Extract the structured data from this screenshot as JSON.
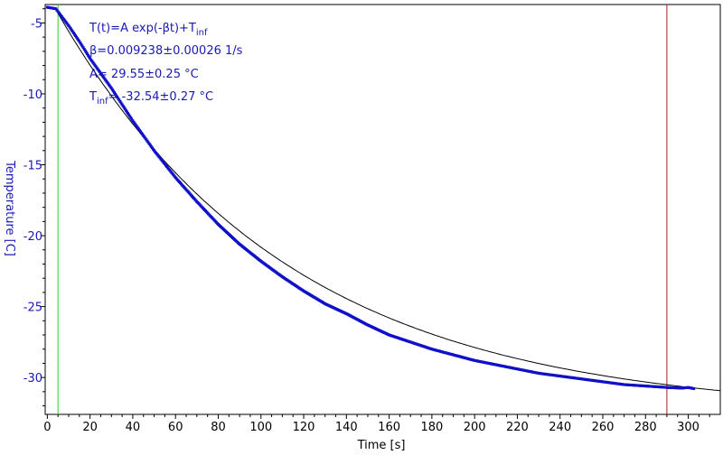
{
  "chart_data": {
    "type": "scatter",
    "xlabel": "Time [s]",
    "ylabel": "Temperature [C]",
    "xlim": [
      -1,
      315
    ],
    "ylim": [
      -32.6,
      -3.7
    ],
    "xticks": [
      0,
      20,
      40,
      60,
      80,
      100,
      120,
      140,
      160,
      180,
      200,
      220,
      240,
      260,
      280,
      300
    ],
    "yticks": [
      -5,
      -10,
      -15,
      -20,
      -25,
      -30
    ],
    "grid": false,
    "annotations": {
      "line1_main": "T(t)=A exp(-βt)+T",
      "line1_sub": "inf",
      "line2": "β=0.009238±0.00026 1/s",
      "line3": "A= 29.55±0.25 °C",
      "line4_main": "T",
      "line4_sub": "inf",
      "line4_rest": "= -32.54±0.27 °C"
    },
    "fit": {
      "A": 29.55,
      "beta": 0.009238,
      "T_inf": -32.54,
      "x_start": 5,
      "x_end": 315
    },
    "measured": {
      "x": [
        0,
        2,
        4,
        6,
        10,
        15,
        20,
        30,
        40,
        50,
        60,
        70,
        80,
        90,
        100,
        110,
        120,
        130,
        140,
        150,
        160,
        170,
        180,
        190,
        200,
        210,
        220,
        230,
        240,
        250,
        260,
        270,
        280,
        290,
        297,
        300,
        303
      ],
      "y": [
        -3.9,
        -3.95,
        -4.0,
        -4.4,
        -5.2,
        -6.3,
        -7.5,
        -9.6,
        -11.9,
        -14.0,
        -15.9,
        -17.6,
        -19.2,
        -20.6,
        -21.8,
        -22.9,
        -23.9,
        -24.8,
        -25.5,
        -26.3,
        -27.0,
        -27.5,
        -28.0,
        -28.4,
        -28.8,
        -29.1,
        -29.4,
        -29.7,
        -29.9,
        -30.1,
        -30.3,
        -30.5,
        -30.6,
        -30.7,
        -30.75,
        -30.7,
        -30.8
      ]
    },
    "vlines": [
      {
        "x": 5,
        "color": "#33cc33"
      },
      {
        "x": 290,
        "color": "#aa2222"
      }
    ],
    "colors": {
      "data": "#1010c8",
      "fit": "#000000",
      "axis": "#000000",
      "ylabel": "#1a1ab4",
      "ann": "#1a1ab4"
    }
  }
}
